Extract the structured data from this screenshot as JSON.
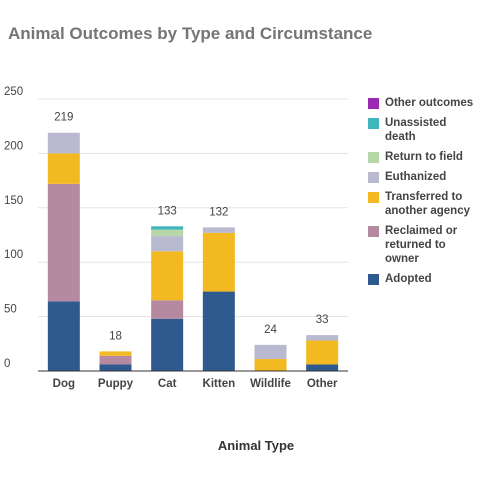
{
  "chart_data": {
    "type": "bar",
    "stacked": true,
    "title": "Animal Outcomes by Type and Circumstance",
    "xlabel": "Animal Type",
    "ylabel": "",
    "categories": [
      "Dog",
      "Puppy",
      "Cat",
      "Kitten",
      "Wildlife",
      "Other"
    ],
    "ylim": [
      0,
      250
    ],
    "yticks": [
      0,
      50,
      100,
      150,
      200,
      250
    ],
    "totals": [
      219,
      18,
      133,
      132,
      24,
      33
    ],
    "grid": true,
    "legend_position": "right",
    "series": [
      {
        "name": "Adopted",
        "color": "#2e5a8f",
        "values": [
          64,
          6,
          48,
          73,
          0,
          6
        ]
      },
      {
        "name": "Reclaimed or returned to owner",
        "color": "#b5899f",
        "values": [
          108,
          8,
          17,
          0,
          0,
          0
        ]
      },
      {
        "name": "Transferred to another agency",
        "color": "#f3b921",
        "values": [
          28,
          4,
          45,
          54,
          11,
          22
        ]
      },
      {
        "name": "Euthanized",
        "color": "#b9b9cf",
        "values": [
          19,
          0,
          14,
          5,
          13,
          5
        ]
      },
      {
        "name": "Return to field",
        "color": "#b6d7a8",
        "values": [
          0,
          0,
          6,
          0,
          0,
          0
        ]
      },
      {
        "name": "Unassisted death",
        "color": "#3fb6be",
        "values": [
          0,
          0,
          3,
          0,
          0,
          0
        ]
      },
      {
        "name": "Other outcomes",
        "color": "#9c27b0",
        "values": [
          0,
          0,
          0,
          0,
          0,
          0
        ]
      }
    ]
  }
}
